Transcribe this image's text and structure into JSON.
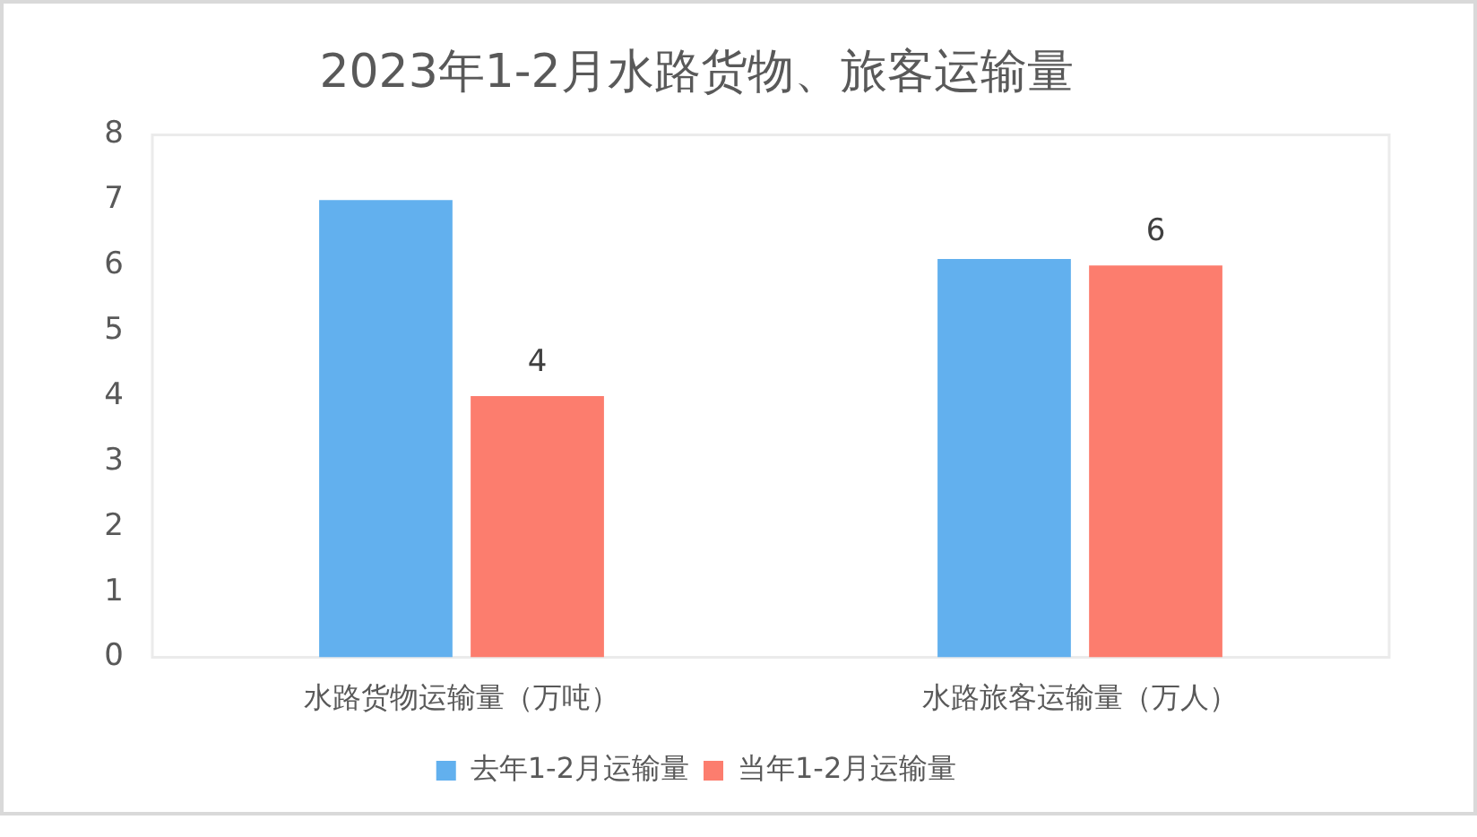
{
  "chart_data": {
    "type": "bar",
    "title": "2023年1-2月水路货物、旅客运输量",
    "categories": [
      "水路货物运输量（万吨）",
      "水路旅客运输量（万人）"
    ],
    "series": [
      {
        "name": "去年1-2月运输量",
        "color": "#62b0ee",
        "values": [
          7,
          6.1
        ]
      },
      {
        "name": "当年1-2月运输量",
        "color": "#fc7d6e",
        "values": [
          4,
          6
        ],
        "value_labels": [
          "4",
          "6"
        ]
      }
    ],
    "ylim": [
      0,
      8
    ],
    "yticks": [
      0,
      1,
      2,
      3,
      4,
      5,
      6,
      7,
      8
    ],
    "grid": false,
    "legend": "bottom"
  }
}
